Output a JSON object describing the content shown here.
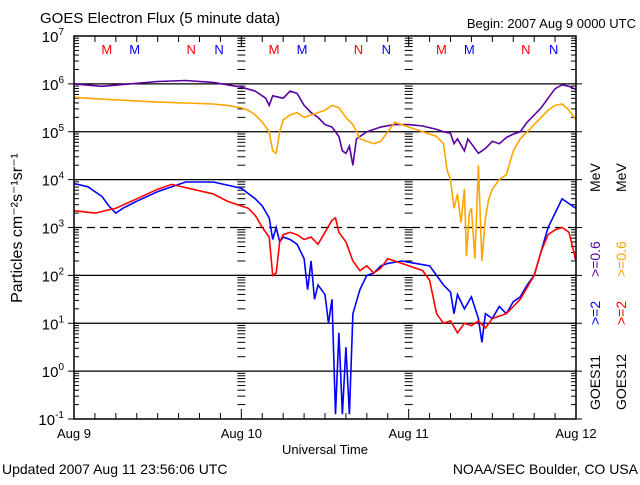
{
  "chart_data": {
    "type": "line",
    "title": "GOES Electron Flux (5 minute data)",
    "begin_label": "Begin: 2007 Aug 9 0000 UTC",
    "xlabel": "Universal Time",
    "ylabel": "Particles cm⁻²s⁻¹sr⁻¹",
    "x_unit": "hours since begin",
    "xlim": [
      0,
      72
    ],
    "x_ticks": [
      {
        "hour": 0,
        "label": "Aug 9"
      },
      {
        "hour": 24,
        "label": "Aug 10"
      },
      {
        "hour": 48,
        "label": "Aug 11"
      },
      {
        "hour": 72,
        "label": "Aug 12"
      }
    ],
    "y_scale": "log",
    "ylim_log10": [
      -1,
      7
    ],
    "y_ticks": [
      {
        "base": "10",
        "exp": "7"
      },
      {
        "base": "10",
        "exp": "6"
      },
      {
        "base": "10",
        "exp": "5"
      },
      {
        "base": "10",
        "exp": "4"
      },
      {
        "base": "10",
        "exp": "3"
      },
      {
        "base": "10",
        "exp": "2"
      },
      {
        "base": "10",
        "exp": "1"
      },
      {
        "base": "10",
        "exp": "0"
      },
      {
        "base": "10",
        "exp": "-1"
      }
    ],
    "threshold_log10": 3,
    "grid": true,
    "markers": [
      {
        "label": "M",
        "hour": 4.7,
        "color": "#ff0000"
      },
      {
        "label": "M",
        "hour": 8.7,
        "color": "#0000ff"
      },
      {
        "label": "N",
        "hour": 16.8,
        "color": "#ff0000"
      },
      {
        "label": "N",
        "hour": 20.8,
        "color": "#0000ff"
      },
      {
        "label": "M",
        "hour": 28.7,
        "color": "#ff0000"
      },
      {
        "label": "M",
        "hour": 32.7,
        "color": "#0000ff"
      },
      {
        "label": "N",
        "hour": 40.8,
        "color": "#ff0000"
      },
      {
        "label": "N",
        "hour": 44.8,
        "color": "#0000ff"
      },
      {
        "label": "M",
        "hour": 52.7,
        "color": "#ff0000"
      },
      {
        "label": "M",
        "hour": 56.7,
        "color": "#0000ff"
      },
      {
        "label": "N",
        "hour": 64.8,
        "color": "#ff0000"
      },
      {
        "label": "N",
        "hour": 68.8,
        "color": "#0000ff"
      }
    ],
    "legend": {
      "placement": "right",
      "satellites": [
        "GOES11",
        "GOES12"
      ],
      "unit": "MeV",
      "entries": [
        {
          "label": ">=2",
          "color": "#0000ff"
        },
        {
          "label": ">=0.6",
          "color": "#5a00a0"
        },
        {
          "label": ">=2",
          "color": "#ff0000"
        },
        {
          "label": ">=0.6",
          "color": "#ffa500"
        }
      ]
    },
    "series": [
      {
        "name": "GOES11 >=0.6 MeV",
        "color": "#5a00a0",
        "points_hour_log10": [
          [
            0,
            6.0
          ],
          [
            4,
            5.95
          ],
          [
            8,
            6.0
          ],
          [
            12,
            6.05
          ],
          [
            16,
            6.07
          ],
          [
            20,
            6.03
          ],
          [
            24,
            5.93
          ],
          [
            26,
            5.85
          ],
          [
            27.5,
            5.7
          ],
          [
            28,
            5.55
          ],
          [
            28.5,
            5.75
          ],
          [
            30,
            5.7
          ],
          [
            31,
            5.85
          ],
          [
            32,
            5.8
          ],
          [
            33,
            5.55
          ],
          [
            34,
            5.4
          ],
          [
            35,
            5.3
          ],
          [
            36,
            5.15
          ],
          [
            37,
            5.1
          ],
          [
            38,
            4.9
          ],
          [
            38.5,
            4.6
          ],
          [
            39,
            4.55
          ],
          [
            39.5,
            4.7
          ],
          [
            40,
            4.3
          ],
          [
            40.5,
            4.85
          ],
          [
            41,
            4.9
          ],
          [
            42,
            5.0
          ],
          [
            43,
            5.05
          ],
          [
            44,
            5.1
          ],
          [
            46,
            5.15
          ],
          [
            48,
            5.15
          ],
          [
            50,
            5.12
          ],
          [
            52,
            5.05
          ],
          [
            53,
            5.0
          ],
          [
            54,
            4.97
          ],
          [
            54.5,
            4.75
          ],
          [
            55,
            4.85
          ],
          [
            56,
            4.6
          ],
          [
            56.5,
            4.85
          ],
          [
            57,
            4.75
          ],
          [
            58,
            4.55
          ],
          [
            59,
            4.65
          ],
          [
            60,
            4.8
          ],
          [
            61,
            4.75
          ],
          [
            62,
            4.88
          ],
          [
            63,
            4.95
          ],
          [
            64,
            5.0
          ],
          [
            65,
            5.2
          ],
          [
            66,
            5.35
          ],
          [
            67,
            5.5
          ],
          [
            68,
            5.7
          ],
          [
            69,
            5.9
          ],
          [
            70,
            5.98
          ],
          [
            71,
            5.95
          ],
          [
            72,
            5.88
          ]
        ]
      },
      {
        "name": "GOES12 >=0.6 MeV",
        "color": "#ffa500",
        "points_hour_log10": [
          [
            0,
            5.72
          ],
          [
            4,
            5.68
          ],
          [
            8,
            5.65
          ],
          [
            12,
            5.62
          ],
          [
            16,
            5.6
          ],
          [
            20,
            5.58
          ],
          [
            22,
            5.55
          ],
          [
            24,
            5.5
          ],
          [
            25,
            5.45
          ],
          [
            26,
            5.35
          ],
          [
            27,
            5.2
          ],
          [
            28,
            5.0
          ],
          [
            28.5,
            4.6
          ],
          [
            29,
            4.55
          ],
          [
            29.5,
            5.0
          ],
          [
            30,
            5.25
          ],
          [
            31,
            5.35
          ],
          [
            32,
            5.4
          ],
          [
            33,
            5.3
          ],
          [
            34,
            5.35
          ],
          [
            35,
            5.4
          ],
          [
            36,
            5.45
          ],
          [
            37,
            5.55
          ],
          [
            38,
            5.5
          ],
          [
            39,
            5.3
          ],
          [
            40,
            5.15
          ],
          [
            41,
            4.85
          ],
          [
            42,
            4.8
          ],
          [
            43,
            4.75
          ],
          [
            44,
            4.8
          ],
          [
            45,
            5.0
          ],
          [
            46,
            5.2
          ],
          [
            47,
            5.15
          ],
          [
            48,
            5.1
          ],
          [
            50,
            5.0
          ],
          [
            52,
            4.9
          ],
          [
            53,
            4.75
          ],
          [
            53.5,
            4.2
          ],
          [
            54,
            4.0
          ],
          [
            54.5,
            3.4
          ],
          [
            55,
            3.7
          ],
          [
            55.5,
            3.1
          ],
          [
            56,
            3.8
          ],
          [
            56.3,
            2.4
          ],
          [
            56.7,
            3.3
          ],
          [
            57,
            3.4
          ],
          [
            57.5,
            2.35
          ],
          [
            58,
            4.3
          ],
          [
            58.5,
            2.3
          ],
          [
            59,
            3.2
          ],
          [
            59.5,
            3.6
          ],
          [
            60,
            3.8
          ],
          [
            61,
            4.0
          ],
          [
            62,
            4.1
          ],
          [
            63,
            4.6
          ],
          [
            64,
            4.85
          ],
          [
            65,
            5.0
          ],
          [
            66,
            5.15
          ],
          [
            67,
            5.3
          ],
          [
            68,
            5.45
          ],
          [
            69,
            5.55
          ],
          [
            70,
            5.58
          ],
          [
            71,
            5.45
          ],
          [
            72,
            5.25
          ]
        ]
      },
      {
        "name": "GOES11 >=2 MeV",
        "color": "#0000ff",
        "points_hour_log10": [
          [
            0,
            3.92
          ],
          [
            2,
            3.85
          ],
          [
            4,
            3.65
          ],
          [
            5,
            3.45
          ],
          [
            6,
            3.3
          ],
          [
            7,
            3.4
          ],
          [
            9,
            3.55
          ],
          [
            12,
            3.75
          ],
          [
            16,
            3.95
          ],
          [
            20,
            3.95
          ],
          [
            24,
            3.82
          ],
          [
            26,
            3.6
          ],
          [
            27,
            3.45
          ],
          [
            28,
            3.2
          ],
          [
            28.5,
            2.75
          ],
          [
            29,
            3.0
          ],
          [
            29.5,
            2.7
          ],
          [
            30,
            2.8
          ],
          [
            31,
            2.75
          ],
          [
            32,
            2.65
          ],
          [
            33,
            2.35
          ],
          [
            33.5,
            1.7
          ],
          [
            34,
            2.3
          ],
          [
            34.5,
            1.5
          ],
          [
            35,
            1.8
          ],
          [
            36,
            1.6
          ],
          [
            36.5,
            1.0
          ],
          [
            37,
            1.5
          ],
          [
            37.5,
            -0.9
          ],
          [
            38,
            0.8
          ],
          [
            38.5,
            -0.9
          ],
          [
            39,
            0.5
          ],
          [
            39.5,
            -0.9
          ],
          [
            40,
            1.2
          ],
          [
            41,
            1.7
          ],
          [
            42,
            2.0
          ],
          [
            43,
            2.05
          ],
          [
            44,
            2.2
          ],
          [
            45,
            2.25
          ],
          [
            47,
            2.3
          ],
          [
            49,
            2.25
          ],
          [
            51,
            2.2
          ],
          [
            52,
            2.0
          ],
          [
            53,
            1.8
          ],
          [
            54,
            1.65
          ],
          [
            54.5,
            1.2
          ],
          [
            55,
            1.6
          ],
          [
            56,
            1.3
          ],
          [
            57,
            1.55
          ],
          [
            58,
            1.1
          ],
          [
            58.5,
            0.6
          ],
          [
            59,
            1.2
          ],
          [
            60,
            1.1
          ],
          [
            61,
            1.35
          ],
          [
            62,
            1.2
          ],
          [
            63,
            1.45
          ],
          [
            64,
            1.55
          ],
          [
            65,
            1.8
          ],
          [
            66,
            2.0
          ],
          [
            67,
            2.5
          ],
          [
            68,
            3.0
          ],
          [
            69,
            3.3
          ],
          [
            70,
            3.6
          ],
          [
            71,
            3.5
          ],
          [
            72,
            3.4
          ]
        ]
      },
      {
        "name": "GOES12 >=2 MeV",
        "color": "#ff0000",
        "points_hour_log10": [
          [
            0,
            3.35
          ],
          [
            3,
            3.3
          ],
          [
            6,
            3.4
          ],
          [
            9,
            3.6
          ],
          [
            12,
            3.8
          ],
          [
            14,
            3.9
          ],
          [
            17,
            3.8
          ],
          [
            20,
            3.7
          ],
          [
            22,
            3.55
          ],
          [
            24,
            3.45
          ],
          [
            25,
            3.4
          ],
          [
            26,
            3.25
          ],
          [
            27,
            3.0
          ],
          [
            28,
            2.8
          ],
          [
            28.5,
            2.0
          ],
          [
            29,
            2.05
          ],
          [
            29.5,
            2.7
          ],
          [
            30,
            2.85
          ],
          [
            31,
            2.9
          ],
          [
            32,
            2.85
          ],
          [
            33,
            2.75
          ],
          [
            34,
            2.8
          ],
          [
            35,
            2.65
          ],
          [
            36,
            2.9
          ],
          [
            37,
            3.15
          ],
          [
            37.5,
            3.2
          ],
          [
            38,
            2.9
          ],
          [
            39,
            2.7
          ],
          [
            40,
            2.3
          ],
          [
            41,
            2.1
          ],
          [
            42,
            2.2
          ],
          [
            43,
            2.05
          ],
          [
            44,
            2.15
          ],
          [
            45,
            2.35
          ],
          [
            46,
            2.3
          ],
          [
            48,
            2.2
          ],
          [
            50,
            2.1
          ],
          [
            51,
            1.9
          ],
          [
            52,
            1.2
          ],
          [
            53,
            1.0
          ],
          [
            54,
            1.05
          ],
          [
            55,
            0.8
          ],
          [
            56,
            1.0
          ],
          [
            57,
            0.95
          ],
          [
            58,
            1.05
          ],
          [
            59,
            0.9
          ],
          [
            60,
            1.1
          ],
          [
            62,
            1.2
          ],
          [
            63,
            1.35
          ],
          [
            64,
            1.5
          ],
          [
            65,
            1.75
          ],
          [
            66,
            2.0
          ],
          [
            67,
            2.5
          ],
          [
            68,
            2.85
          ],
          [
            69,
            2.95
          ],
          [
            70,
            3.0
          ],
          [
            71,
            2.9
          ],
          [
            72,
            2.3
          ]
        ]
      }
    ]
  },
  "footer": {
    "updated": "Updated 2007 Aug 11 23:56:06 UTC",
    "source": "NOAA/SEC Boulder, CO USA"
  }
}
